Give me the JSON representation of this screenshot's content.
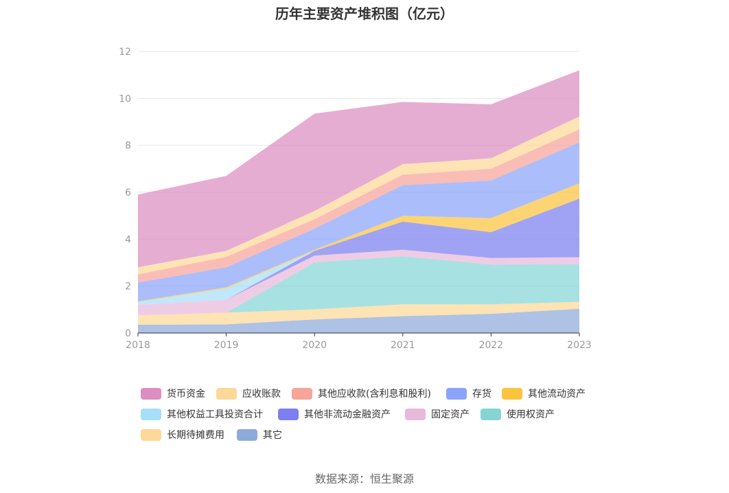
{
  "chart_data": {
    "type": "area",
    "stacked": true,
    "title": "历年主要资产堆积图（亿元）",
    "x": [
      "2018",
      "2019",
      "2020",
      "2021",
      "2022",
      "2023"
    ],
    "ylim": [
      0,
      12
    ],
    "yticks": [
      "0",
      "2",
      "4",
      "6",
      "8",
      "10",
      "12"
    ],
    "grid": true,
    "legend_position": "bottom",
    "series": [
      {
        "name": "其它",
        "color": "#8eaadb",
        "values": [
          0.35,
          0.37,
          0.58,
          0.72,
          0.82,
          1.03
        ]
      },
      {
        "name": "长期待摊费用",
        "color": "#fdd897",
        "values": [
          0.4,
          0.5,
          0.43,
          0.5,
          0.4,
          0.3
        ]
      },
      {
        "name": "使用权资产",
        "color": "#86d5d5",
        "values": [
          0.0,
          0.0,
          2.0,
          2.05,
          1.7,
          1.6
        ]
      },
      {
        "name": "固定资产",
        "color": "#e9b9db",
        "values": [
          0.45,
          0.55,
          0.29,
          0.28,
          0.28,
          0.3
        ]
      },
      {
        "name": "其他非流动金融资产",
        "color": "#7b7ff0",
        "values": [
          0.0,
          0.0,
          0.2,
          1.2,
          1.1,
          2.5
        ]
      },
      {
        "name": "其他权益工具投资合计",
        "color": "#a7def8",
        "values": [
          0.12,
          0.48,
          0.0,
          0.0,
          0.0,
          0.0
        ]
      },
      {
        "name": "其他流动资产",
        "color": "#fbc43f",
        "values": [
          0.03,
          0.05,
          0.05,
          0.25,
          0.6,
          0.65
        ]
      },
      {
        "name": "存货",
        "color": "#8ba4f9",
        "values": [
          0.8,
          0.85,
          0.9,
          1.3,
          1.6,
          1.75
        ]
      },
      {
        "name": "其他应收款(含利息和股利)",
        "color": "#f7a49a",
        "values": [
          0.35,
          0.45,
          0.4,
          0.45,
          0.5,
          0.55
        ]
      },
      {
        "name": "应收账款",
        "color": "#fdd897",
        "values": [
          0.3,
          0.25,
          0.35,
          0.45,
          0.45,
          0.55
        ]
      },
      {
        "name": "货币资金",
        "color": "#dc8ec2",
        "values": [
          3.1,
          3.2,
          4.15,
          2.65,
          2.3,
          1.97
        ]
      }
    ]
  },
  "legend": [
    {
      "label": "货币资金",
      "color": "#dc8ec2"
    },
    {
      "label": "应收账款",
      "color": "#fdd897"
    },
    {
      "label": "其他应收款(含利息和股利)",
      "color": "#f7a49a"
    },
    {
      "label": "存货",
      "color": "#8ba4f9"
    },
    {
      "label": "其他流动资产",
      "color": "#fbc43f"
    },
    {
      "label": "其他权益工具投资合计",
      "color": "#a7def8"
    },
    {
      "label": "其他非流动金融资产",
      "color": "#7b7ff0"
    },
    {
      "label": "固定资产",
      "color": "#e9b9db"
    },
    {
      "label": "使用权资产",
      "color": "#86d5d5"
    },
    {
      "label": "长期待摊费用",
      "color": "#fdd897"
    },
    {
      "label": "其它",
      "color": "#8eaadb"
    }
  ],
  "source": "数据来源：恒生聚源"
}
